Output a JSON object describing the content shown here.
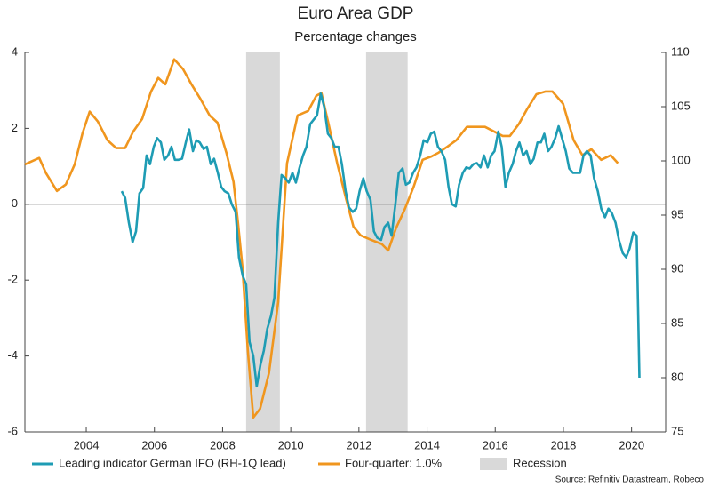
{
  "chart_data": {
    "type": "line",
    "title": "Euro Area GDP",
    "subtitle": "Percentage changes",
    "source": "Source: Refinitiv Datastream, Robeco",
    "xlim": [
      2002.2,
      2021
    ],
    "xticks": [
      2004,
      2006,
      2008,
      2010,
      2012,
      2014,
      2016,
      2018,
      2020
    ],
    "ylim": [
      -6,
      4
    ],
    "yticks": [
      -6,
      -4,
      -2,
      0,
      2,
      4
    ],
    "y2lim": [
      75,
      110
    ],
    "y2ticks": [
      75,
      80,
      85,
      90,
      95,
      100,
      105,
      110
    ],
    "grid": false,
    "hline": 0,
    "legend": "bottom",
    "shaded": {
      "name": "Recession",
      "color": "#d9d9d9",
      "spans": [
        [
          2008.69,
          2009.68
        ],
        [
          2012.21,
          2013.43
        ]
      ]
    },
    "series": [
      {
        "name": "Leading indicator German IFO (RH-1Q lead)",
        "color": "#1e9cb4",
        "axis": "y2",
        "x": [
          2005.04,
          2005.14,
          2005.25,
          2005.36,
          2005.46,
          2005.56,
          2005.67,
          2005.77,
          2005.87,
          2005.98,
          2006.08,
          2006.19,
          2006.29,
          2006.4,
          2006.5,
          2006.6,
          2006.71,
          2006.81,
          2006.92,
          2007.02,
          2007.13,
          2007.23,
          2007.33,
          2007.44,
          2007.54,
          2007.65,
          2007.75,
          2007.86,
          2007.96,
          2008.06,
          2008.17,
          2008.27,
          2008.38,
          2008.48,
          2008.59,
          2008.69,
          2008.79,
          2008.9,
          2009.0,
          2009.11,
          2009.21,
          2009.31,
          2009.42,
          2009.52,
          2009.63,
          2009.73,
          2009.84,
          2009.94,
          2010.05,
          2010.15,
          2010.25,
          2010.36,
          2010.46,
          2010.57,
          2010.67,
          2010.77,
          2010.88,
          2010.98,
          2011.09,
          2011.19,
          2011.29,
          2011.4,
          2011.5,
          2011.61,
          2011.71,
          2011.82,
          2011.92,
          2012.02,
          2012.13,
          2012.23,
          2012.34,
          2012.44,
          2012.54,
          2012.65,
          2012.75,
          2012.86,
          2012.96,
          2013.07,
          2013.17,
          2013.28,
          2013.38,
          2013.48,
          2013.59,
          2013.69,
          2013.8,
          2013.9,
          2014.01,
          2014.11,
          2014.21,
          2014.32,
          2014.42,
          2014.53,
          2014.63,
          2014.73,
          2014.84,
          2014.94,
          2015.05,
          2015.15,
          2015.25,
          2015.36,
          2015.46,
          2015.57,
          2015.67,
          2015.78,
          2015.88,
          2015.98,
          2016.09,
          2016.19,
          2016.3,
          2016.4,
          2016.51,
          2016.61,
          2016.71,
          2016.82,
          2016.92,
          2017.03,
          2017.13,
          2017.24,
          2017.34,
          2017.44,
          2017.55,
          2017.65,
          2017.76,
          2017.86,
          2017.96,
          2018.07,
          2018.17,
          2018.28,
          2018.38,
          2018.49,
          2018.59,
          2018.69,
          2018.8,
          2018.9,
          2019.01,
          2019.11,
          2019.22,
          2019.32,
          2019.42,
          2019.53,
          2019.63,
          2019.74,
          2019.84,
          2019.94,
          2020.05,
          2020.15,
          2020.23
        ],
        "values": [
          97.2,
          96.6,
          94.3,
          92.5,
          93.5,
          97.0,
          97.5,
          100.5,
          99.7,
          101.3,
          102.1,
          101.7,
          100.1,
          100.5,
          101.3,
          100.1,
          100.1,
          100.2,
          101.7,
          102.9,
          100.9,
          101.9,
          101.7,
          101.1,
          101.3,
          99.7,
          100.2,
          98.9,
          97.6,
          97.2,
          97.0,
          96.0,
          95.3,
          91.1,
          89.4,
          88.6,
          83.3,
          82.0,
          79.2,
          81.2,
          82.5,
          84.5,
          85.7,
          87.4,
          94.3,
          98.7,
          98.4,
          98.0,
          98.9,
          98.0,
          99.3,
          100.5,
          101.3,
          103.4,
          103.8,
          104.2,
          106.2,
          105.0,
          102.5,
          102.1,
          101.3,
          101.3,
          99.7,
          97.2,
          95.7,
          95.3,
          95.6,
          97.2,
          98.4,
          97.2,
          96.4,
          93.5,
          92.9,
          92.7,
          93.9,
          94.3,
          93.1,
          96.0,
          98.9,
          99.3,
          97.8,
          98.0,
          98.9,
          99.4,
          100.5,
          101.9,
          101.7,
          102.5,
          102.7,
          101.3,
          100.9,
          100.1,
          97.6,
          96.0,
          95.8,
          97.8,
          98.9,
          99.4,
          99.3,
          99.7,
          99.8,
          99.4,
          100.5,
          99.4,
          100.5,
          100.9,
          102.7,
          101.3,
          97.6,
          98.9,
          99.7,
          100.9,
          101.7,
          100.5,
          100.9,
          99.7,
          100.2,
          101.7,
          101.7,
          102.5,
          100.9,
          101.3,
          102.1,
          103.2,
          102.1,
          100.9,
          99.3,
          98.9,
          98.9,
          98.9,
          100.5,
          100.9,
          100.5,
          98.4,
          97.2,
          95.6,
          94.8,
          95.6,
          95.2,
          94.3,
          92.7,
          91.5,
          91.1,
          91.9,
          93.4,
          93.1,
          80.0
        ]
      },
      {
        "name": "Four-quarter: 1.0%",
        "color": "#f0961e",
        "x": [
          2002.2,
          2002.62,
          2002.82,
          2003.14,
          2003.4,
          2003.66,
          2003.89,
          2004.1,
          2004.34,
          2004.62,
          2004.88,
          2005.14,
          2005.38,
          2005.64,
          2005.9,
          2006.11,
          2006.32,
          2006.58,
          2006.84,
          2007.1,
          2007.36,
          2007.62,
          2007.85,
          2008.11,
          2008.32,
          2008.45,
          2008.58,
          2008.74,
          2008.9,
          2009.1,
          2009.36,
          2009.63,
          2009.89,
          2010.2,
          2010.51,
          2010.75,
          2010.9,
          2011.11,
          2011.37,
          2011.63,
          2011.84,
          2012.05,
          2012.36,
          2012.67,
          2012.86,
          2013.09,
          2013.35,
          2013.61,
          2013.87,
          2014.13,
          2014.34,
          2014.6,
          2014.86,
          2015.17,
          2015.7,
          2016.22,
          2016.43,
          2016.69,
          2016.95,
          2017.21,
          2017.47,
          2017.68,
          2017.99,
          2018.3,
          2018.56,
          2018.82,
          2019.11,
          2019.39,
          2019.6
        ],
        "values": [
          1.05,
          1.22,
          0.82,
          0.35,
          0.52,
          1.05,
          1.87,
          2.44,
          2.18,
          1.69,
          1.48,
          1.48,
          1.92,
          2.25,
          2.97,
          3.33,
          3.16,
          3.82,
          3.56,
          3.14,
          2.76,
          2.34,
          2.15,
          1.36,
          0.59,
          -0.47,
          -1.64,
          -3.86,
          -5.62,
          -5.39,
          -4.45,
          -2.58,
          1.08,
          2.34,
          2.46,
          2.86,
          2.93,
          2.11,
          1.05,
          0.12,
          -0.59,
          -0.82,
          -0.94,
          -1.05,
          -1.22,
          -0.63,
          -0.12,
          0.47,
          1.17,
          1.26,
          1.36,
          1.52,
          1.69,
          2.04,
          2.04,
          1.8,
          1.8,
          2.11,
          2.53,
          2.9,
          2.97,
          2.97,
          2.65,
          1.69,
          1.29,
          1.45,
          1.17,
          1.29,
          1.08
        ]
      }
    ]
  }
}
